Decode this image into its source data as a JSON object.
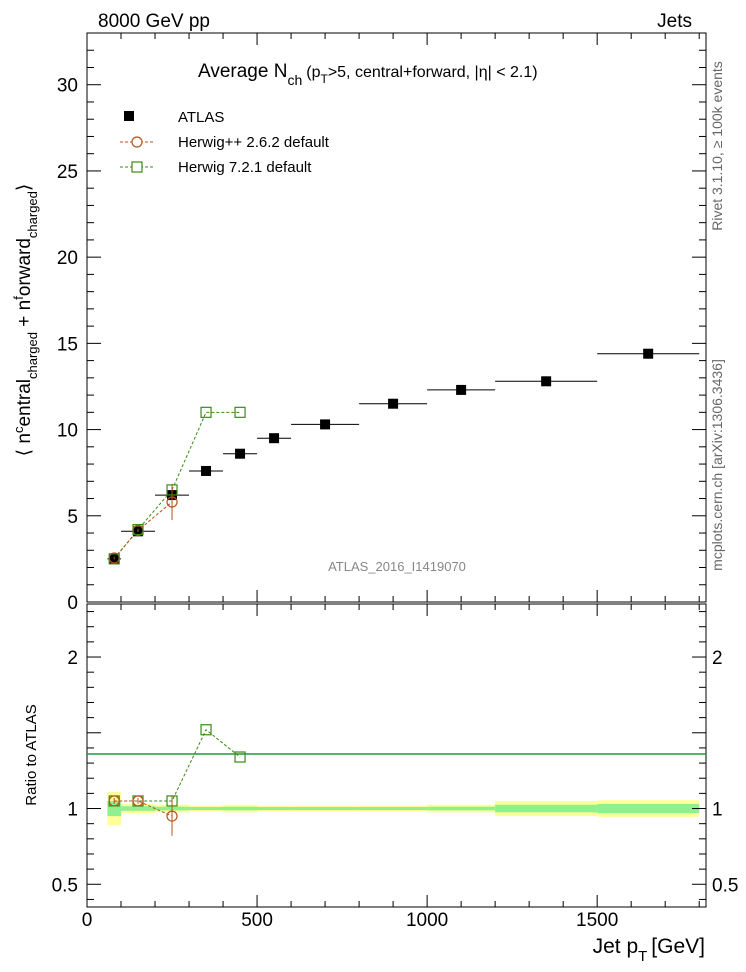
{
  "header": {
    "left": "8000 GeV pp",
    "right": "Jets"
  },
  "side_labels": {
    "rivet": "Rivet 3.1.10, ≥ 100k events",
    "mcplots": "mcplots.cern.ch [arXiv:1306.3436]"
  },
  "chart_data": {
    "type": "scatter",
    "title": "Average N_ch (p_T>5, central+forward, |η| < 2.1)",
    "title_parts": {
      "main": "Average N",
      "sub": "ch",
      "tail": "(p",
      "tsub": "T",
      "rest": ">5, central+forward, |η| < 2.1)"
    },
    "watermark": "ATLAS_2016_I1419070",
    "xlabel": "Jet p_T [GeV]",
    "xlabel_parts": {
      "main": "Jet p",
      "sub": "T",
      "unit": "[GeV]"
    },
    "ylabel": "⟨ n^central_charged + n^forward_charged ⟩",
    "ratio_ylabel": "Ratio to ATLAS",
    "xlim": [
      0,
      1820
    ],
    "ylim": [
      0,
      33
    ],
    "ratio_ylim": [
      0.35,
      2.35
    ],
    "xticks": [
      0,
      500,
      1000,
      1500
    ],
    "xtick_labels": [
      "0",
      "500",
      "1000",
      "1500"
    ],
    "yticks": [
      0,
      5,
      10,
      15,
      20,
      25,
      30
    ],
    "ytick_labels": [
      "0",
      "5",
      "10",
      "15",
      "20",
      "25",
      "30"
    ],
    "ratio_yticks": [
      0.5,
      1,
      2
    ],
    "ratio_ytick_labels": [
      "0.5",
      "1",
      "2"
    ],
    "legend": [
      {
        "name": "ATLAS",
        "marker": "filled-square",
        "color": "#000000"
      },
      {
        "name": "Herwig++ 2.6.2 default",
        "marker": "open-circle",
        "color": "#b5541a"
      },
      {
        "name": "Herwig 7.2.1 default",
        "marker": "open-square",
        "color": "#3b8a17"
      }
    ],
    "series": [
      {
        "name": "ATLAS",
        "x": [
          80,
          150,
          250,
          350,
          450,
          550,
          700,
          900,
          1100,
          1350,
          1650
        ],
        "xerr": [
          20,
          50,
          50,
          50,
          50,
          50,
          100,
          100,
          100,
          150,
          150
        ],
        "y": [
          2.5,
          4.1,
          6.2,
          7.6,
          8.6,
          9.5,
          10.3,
          11.5,
          12.3,
          12.8,
          14.4
        ]
      },
      {
        "name": "Herwig++ 2.6.2 default",
        "x": [
          80,
          150,
          250
        ],
        "y": [
          2.55,
          4.15,
          5.8
        ],
        "yerr": [
          0.08,
          0.1,
          1.05
        ],
        "ratio": [
          1.05,
          1.05,
          0.95
        ],
        "ratio_err": [
          0.02,
          0.02,
          0.13
        ]
      },
      {
        "name": "Herwig 7.2.1 default",
        "x": [
          80,
          150,
          250,
          350,
          450
        ],
        "y": [
          2.5,
          4.2,
          6.5,
          11.0,
          11.0
        ],
        "ratio": [
          1.05,
          1.05,
          1.05,
          1.52,
          1.34
        ]
      }
    ],
    "bands": {
      "xlo": [
        60,
        100,
        200,
        300,
        400,
        500,
        600,
        800,
        1000,
        1200,
        1500
      ],
      "xhi": [
        100,
        200,
        300,
        400,
        500,
        600,
        800,
        1000,
        1200,
        1500,
        1800
      ],
      "yellow": [
        0.11,
        0.03,
        0.025,
        0.02,
        0.025,
        0.02,
        0.02,
        0.02,
        0.025,
        0.05,
        0.055
      ],
      "green": [
        0.05,
        0.015,
        0.012,
        0.01,
        0.012,
        0.01,
        0.01,
        0.01,
        0.012,
        0.025,
        0.03
      ]
    }
  }
}
